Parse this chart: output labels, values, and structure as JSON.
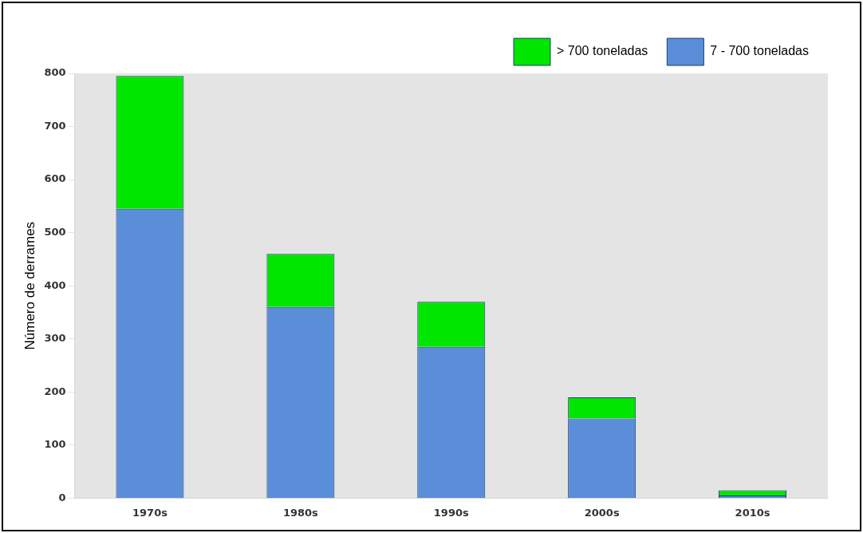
{
  "chart_data": {
    "type": "bar",
    "stacked": true,
    "ylabel": "Número de derrames",
    "categories": [
      "1970s",
      "1980s",
      "1990s",
      "2000s",
      "2010s"
    ],
    "series": [
      {
        "name": "7 - 700 toneladas",
        "color": "#5b8ed8",
        "values": [
          545,
          360,
          285,
          150,
          5
        ]
      },
      {
        "name": "> 700 toneladas",
        "color": "#00e600",
        "values": [
          250,
          100,
          85,
          40,
          10
        ]
      }
    ],
    "ylim": [
      0,
      800
    ],
    "yticks": [
      0,
      100,
      200,
      300,
      400,
      500,
      600,
      700,
      800
    ],
    "grid": false,
    "legend": "top right"
  }
}
